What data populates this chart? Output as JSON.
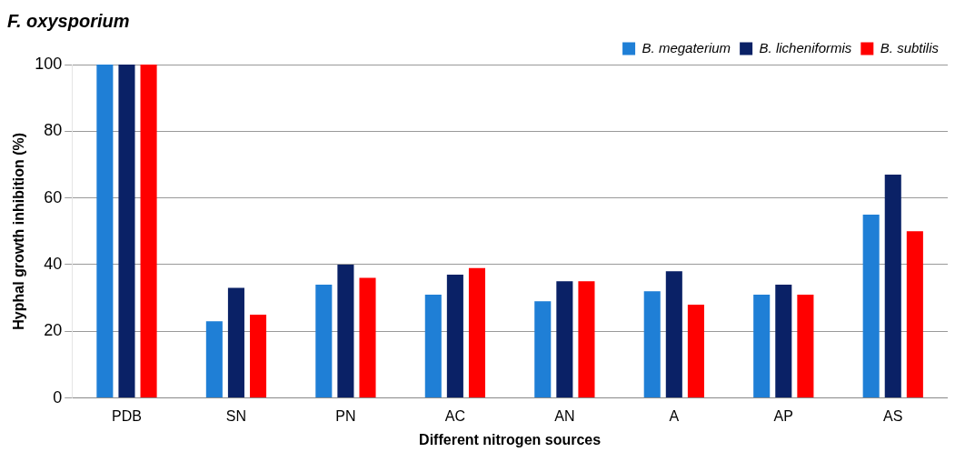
{
  "chart_data": {
    "type": "bar",
    "title": "F. oxysporium",
    "xlabel": "Different nitrogen sources",
    "ylabel": "Hyphal growth inhibition (%)",
    "categories": [
      "PDB",
      "SN",
      "PN",
      "AC",
      "AN",
      "A",
      "AP",
      "AS"
    ],
    "series": [
      {
        "name": "B. megaterium",
        "color": "#1f7fd6",
        "values": [
          100,
          23,
          34,
          31,
          29,
          32,
          31,
          55
        ]
      },
      {
        "name": "B. licheniformis",
        "color": "#0a2166",
        "values": [
          100,
          33,
          40,
          37,
          35,
          38,
          34,
          67
        ]
      },
      {
        "name": "B. subtilis",
        "color": "#ff0000",
        "values": [
          100,
          25,
          36,
          39,
          35,
          28,
          31,
          50
        ]
      }
    ],
    "ylim": [
      0,
      100
    ],
    "yticks": [
      0,
      20,
      40,
      60,
      80,
      100
    ],
    "grid": "y",
    "legend": "top right"
  }
}
